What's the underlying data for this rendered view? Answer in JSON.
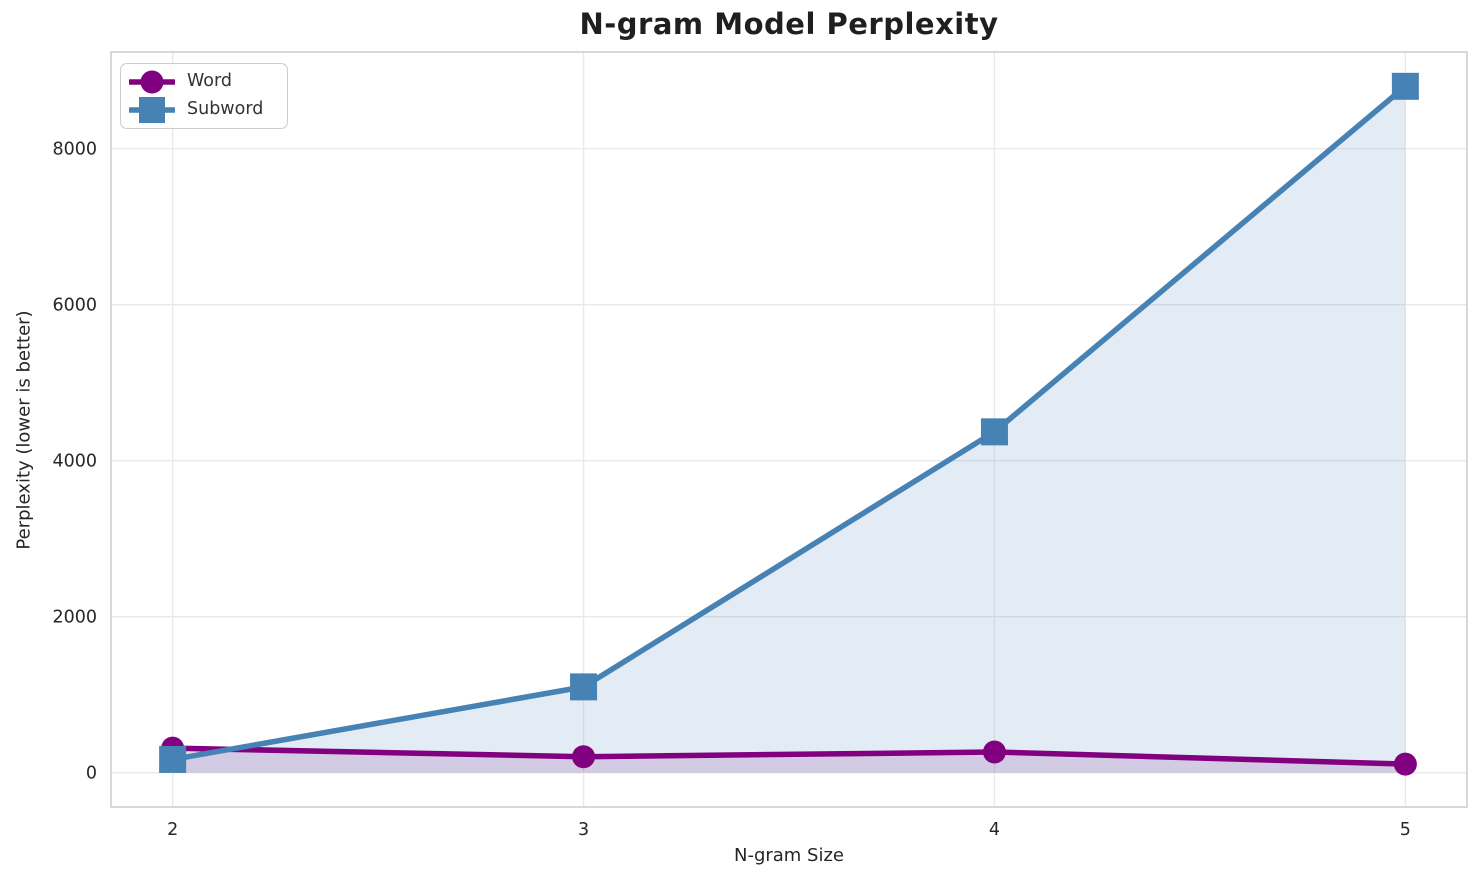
{
  "chart_data": {
    "type": "line",
    "title": "N-gram Model Perplexity",
    "xlabel": "N-gram Size",
    "ylabel": "Perplexity (lower is better)",
    "x": [
      2,
      3,
      4,
      5
    ],
    "series": [
      {
        "name": "Word",
        "color": "#800080",
        "marker": "circle",
        "values": [
          315,
          205,
          265,
          110
        ]
      },
      {
        "name": "Subword",
        "color": "#4682B4",
        "marker": "square",
        "values": [
          170,
          1100,
          4370,
          8800
        ]
      }
    ],
    "fill_to_zero": true,
    "fill_alpha": 0.15,
    "xticks": [
      "2",
      "3",
      "4",
      "5"
    ],
    "xtick_values": [
      2,
      3,
      4,
      5
    ],
    "yticks": [
      "0",
      "2000",
      "4000",
      "6000",
      "8000"
    ],
    "ytick_values": [
      0,
      2000,
      4000,
      6000,
      8000
    ],
    "xlim": [
      1.85,
      5.15
    ],
    "ylim": [
      -440,
      9240
    ],
    "grid": true,
    "legend_position": "upper-left",
    "background": "#ffffff"
  }
}
